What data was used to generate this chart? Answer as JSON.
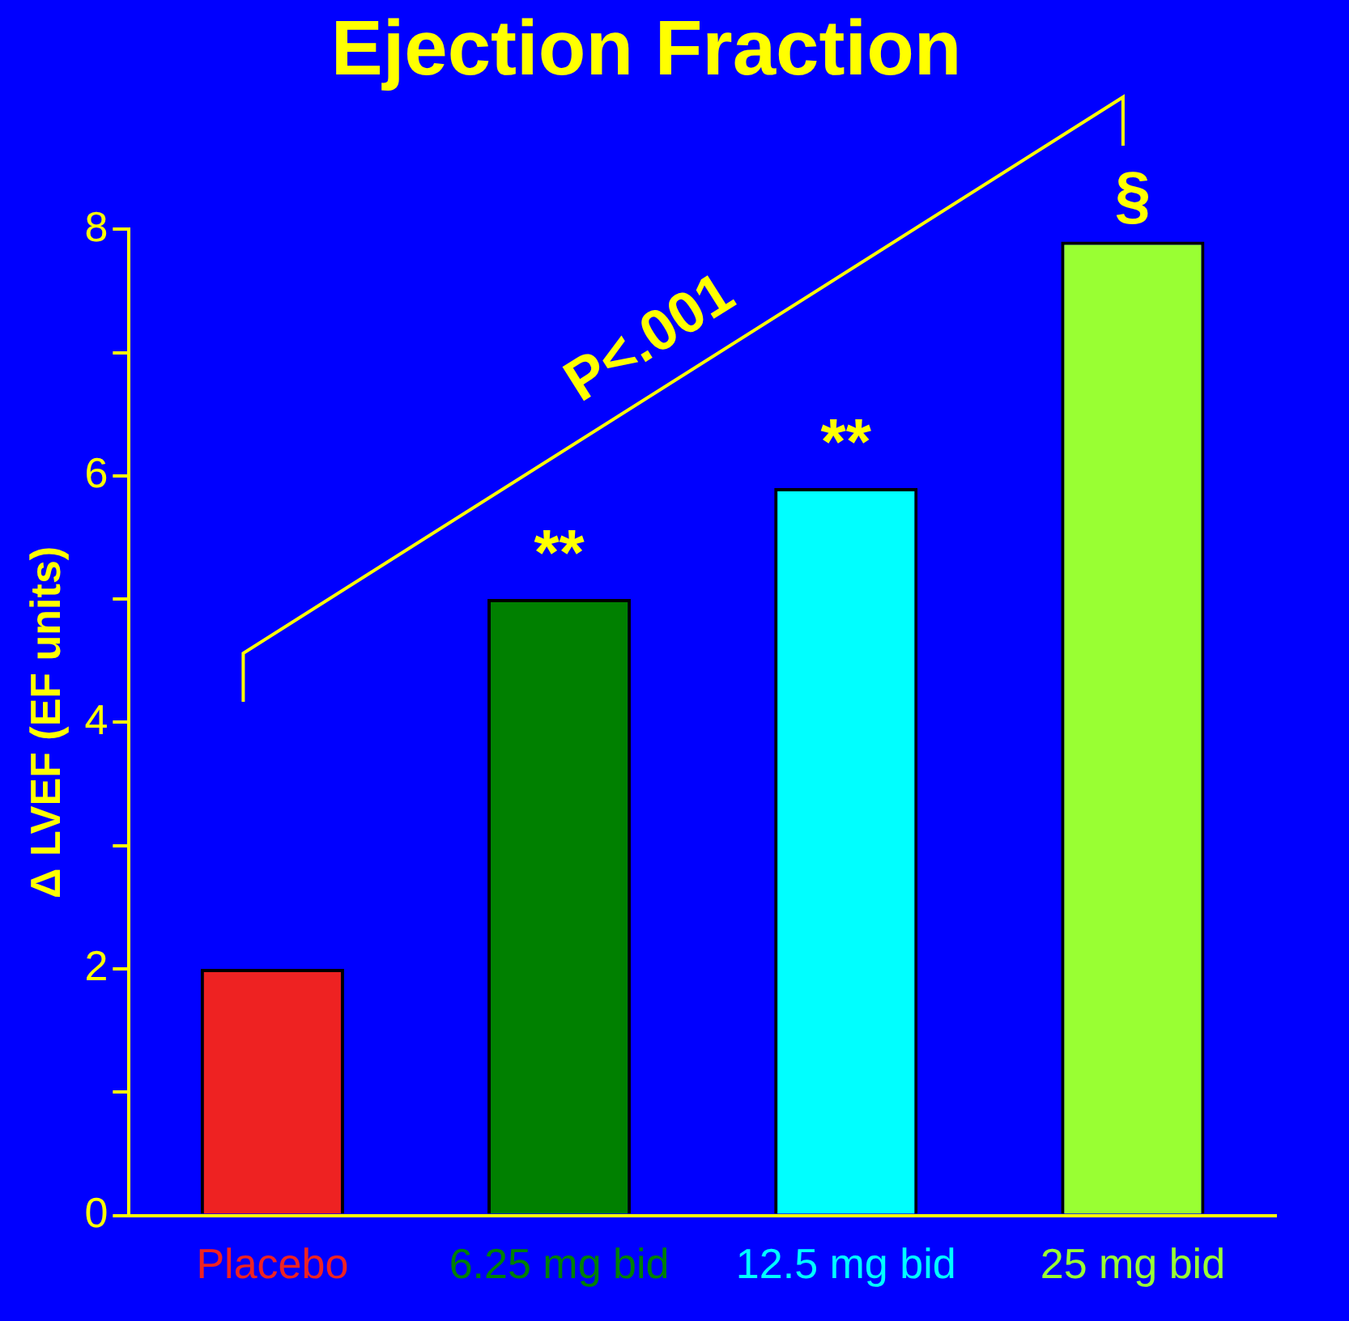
{
  "chart_data": {
    "type": "bar",
    "title": "Ejection Fraction",
    "ylabel": "Δ LVEF (EF units)",
    "categories": [
      "Placebo",
      "6.25 mg bid",
      "12.5 mg bid",
      "25 mg bid"
    ],
    "values": [
      2.0,
      5.0,
      5.9,
      7.9
    ],
    "colors": [
      "#ee2222",
      "#008000",
      "#00ffff",
      "#99ff33"
    ],
    "ylim": [
      0,
      8
    ],
    "yticks": [
      0,
      {
        "value": 1,
        "label": null
      },
      2,
      {
        "value": 3,
        "label": null
      },
      4,
      {
        "value": 5,
        "label": null
      },
      6,
      {
        "value": 7,
        "label": null
      },
      8
    ],
    "annotations": [
      "P<.001",
      "**",
      "**",
      "§"
    ],
    "grid": false,
    "legend": false
  }
}
